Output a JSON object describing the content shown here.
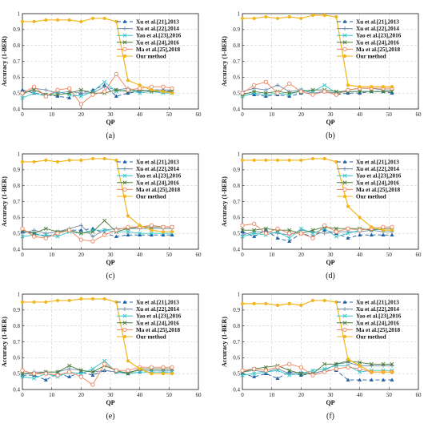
{
  "figure": {
    "xlabel": "QP",
    "ylabel": "Accuracy (1-BER)",
    "xticks": [
      "0",
      "10",
      "20",
      "30",
      "40",
      "50",
      "60"
    ],
    "yticks": [
      "0.4",
      "0.5",
      "0.6",
      "0.7",
      "0.8",
      "0.9",
      "1"
    ],
    "legend_placement": "right",
    "grid": true,
    "colors": {
      "Xu et al.[21],2013": "#1f5fa8",
      "Xu et al.[22],2014": "#6f8ba8",
      "Yao et al.[23],2016": "#33c4c8",
      "Xu et al.[24],2016": "#4a7a36",
      "Ma et al.[25],2018": "#f0825a",
      "Our method": "#f2b51c"
    }
  },
  "chart_data": [
    {
      "type": "line",
      "label": "(a)",
      "xlim": [
        0,
        60
      ],
      "ylim": [
        0.4,
        1.0
      ],
      "x": [
        0,
        4,
        8,
        12,
        16,
        20,
        24,
        28,
        32,
        36,
        40,
        44,
        48,
        51
      ],
      "series": [
        {
          "name": "Xu et al.[21],2013",
          "values": [
            0.52,
            0.5,
            0.49,
            0.48,
            0.47,
            0.5,
            0.52,
            0.55,
            0.48,
            0.5,
            0.51,
            0.52,
            0.52,
            0.51
          ]
        },
        {
          "name": "Xu et al.[22],2014",
          "values": [
            0.49,
            0.53,
            0.52,
            0.5,
            0.51,
            0.5,
            0.5,
            0.54,
            0.52,
            0.53,
            0.51,
            0.52,
            0.52,
            0.52
          ]
        },
        {
          "name": "Yao et al.[23],2016",
          "values": [
            0.47,
            0.5,
            0.48,
            0.51,
            0.49,
            0.48,
            0.51,
            0.57,
            0.51,
            0.52,
            0.5,
            0.51,
            0.5,
            0.5
          ]
        },
        {
          "name": "Xu et al.[24],2016",
          "values": [
            0.5,
            0.52,
            0.49,
            0.49,
            0.5,
            0.52,
            0.5,
            0.5,
            0.52,
            0.51,
            0.52,
            0.51,
            0.51,
            0.51
          ]
        },
        {
          "name": "Ma et al.[25],2018",
          "values": [
            0.5,
            0.54,
            0.48,
            0.52,
            0.53,
            0.43,
            0.49,
            0.51,
            0.62,
            0.52,
            0.53,
            0.54,
            0.54,
            0.53
          ]
        },
        {
          "name": "Our method",
          "values": [
            0.95,
            0.95,
            0.96,
            0.96,
            0.96,
            0.95,
            0.97,
            0.97,
            0.95,
            0.58,
            0.55,
            0.52,
            0.51,
            0.5
          ]
        }
      ]
    },
    {
      "type": "line",
      "label": "(b)",
      "xlim": [
        0,
        60
      ],
      "ylim": [
        0.4,
        1.0
      ],
      "x": [
        0,
        4,
        8,
        12,
        16,
        20,
        24,
        28,
        32,
        36,
        40,
        44,
        48,
        51
      ],
      "series": [
        {
          "name": "Xu et al.[21],2013",
          "values": [
            0.5,
            0.49,
            0.48,
            0.49,
            0.48,
            0.5,
            0.5,
            0.51,
            0.49,
            0.5,
            0.5,
            0.51,
            0.51,
            0.5
          ]
        },
        {
          "name": "Xu et al.[22],2014",
          "values": [
            0.51,
            0.53,
            0.52,
            0.55,
            0.51,
            0.52,
            0.5,
            0.51,
            0.5,
            0.52,
            0.53,
            0.53,
            0.52,
            0.52
          ]
        },
        {
          "name": "Yao et al.[23],2016",
          "values": [
            0.48,
            0.5,
            0.49,
            0.5,
            0.49,
            0.52,
            0.51,
            0.55,
            0.5,
            0.51,
            0.51,
            0.51,
            0.51,
            0.51
          ]
        },
        {
          "name": "Xu et al.[24],2016",
          "values": [
            0.49,
            0.51,
            0.5,
            0.51,
            0.5,
            0.51,
            0.52,
            0.52,
            0.51,
            0.51,
            0.51,
            0.51,
            0.51,
            0.51
          ]
        },
        {
          "name": "Ma et al.[25],2018",
          "values": [
            0.5,
            0.55,
            0.57,
            0.5,
            0.56,
            0.51,
            0.49,
            0.51,
            0.49,
            0.52,
            0.53,
            0.53,
            0.53,
            0.53
          ]
        },
        {
          "name": "Our method",
          "values": [
            0.97,
            0.97,
            0.98,
            0.97,
            0.98,
            0.97,
            0.99,
            0.99,
            0.98,
            0.55,
            0.54,
            0.54,
            0.54,
            0.54
          ]
        }
      ]
    },
    {
      "type": "line",
      "label": "(c)",
      "xlim": [
        0,
        60
      ],
      "ylim": [
        0.4,
        1.0
      ],
      "x": [
        0,
        4,
        8,
        12,
        16,
        20,
        24,
        28,
        32,
        36,
        40,
        44,
        48,
        51
      ],
      "series": [
        {
          "name": "Xu et al.[21],2013",
          "values": [
            0.51,
            0.5,
            0.48,
            0.5,
            0.52,
            0.52,
            0.53,
            0.5,
            0.48,
            0.49,
            0.49,
            0.49,
            0.49,
            0.49
          ]
        },
        {
          "name": "Xu et al.[22],2014",
          "values": [
            0.5,
            0.52,
            0.5,
            0.51,
            0.53,
            0.55,
            0.48,
            0.52,
            0.53,
            0.53,
            0.53,
            0.53,
            0.53,
            0.53
          ]
        },
        {
          "name": "Yao et al.[23],2016",
          "values": [
            0.48,
            0.49,
            0.49,
            0.48,
            0.51,
            0.5,
            0.52,
            0.52,
            0.51,
            0.51,
            0.5,
            0.5,
            0.5,
            0.5
          ]
        },
        {
          "name": "Xu et al.[24],2016",
          "values": [
            0.52,
            0.5,
            0.53,
            0.51,
            0.52,
            0.5,
            0.51,
            0.58,
            0.51,
            0.53,
            0.54,
            0.54,
            0.54,
            0.54
          ]
        },
        {
          "name": "Ma et al.[25],2018",
          "values": [
            0.53,
            0.48,
            0.47,
            0.5,
            0.52,
            0.46,
            0.45,
            0.49,
            0.52,
            0.54,
            0.54,
            0.55,
            0.54,
            0.54
          ]
        },
        {
          "name": "Our method",
          "values": [
            0.95,
            0.95,
            0.96,
            0.95,
            0.96,
            0.96,
            0.97,
            0.97,
            0.96,
            0.61,
            0.55,
            0.52,
            0.51,
            0.51
          ]
        }
      ]
    },
    {
      "type": "line",
      "label": "(d)",
      "xlim": [
        0,
        60
      ],
      "ylim": [
        0.4,
        1.0
      ],
      "x": [
        0,
        4,
        8,
        12,
        16,
        20,
        24,
        28,
        32,
        36,
        40,
        44,
        48,
        51
      ],
      "series": [
        {
          "name": "Xu et al.[21],2013",
          "values": [
            0.51,
            0.48,
            0.52,
            0.47,
            0.45,
            0.5,
            0.48,
            0.52,
            0.5,
            0.47,
            0.49,
            0.49,
            0.49,
            0.49
          ]
        },
        {
          "name": "Xu et al.[22],2014",
          "values": [
            0.49,
            0.51,
            0.51,
            0.5,
            0.49,
            0.52,
            0.51,
            0.5,
            0.51,
            0.51,
            0.51,
            0.52,
            0.51,
            0.51
          ]
        },
        {
          "name": "Yao et al.[23],2016",
          "values": [
            0.48,
            0.5,
            0.49,
            0.51,
            0.47,
            0.53,
            0.5,
            0.53,
            0.48,
            0.5,
            0.52,
            0.53,
            0.52,
            0.52
          ]
        },
        {
          "name": "Xu et al.[24],2016",
          "values": [
            0.52,
            0.52,
            0.53,
            0.52,
            0.52,
            0.5,
            0.52,
            0.54,
            0.53,
            0.53,
            0.53,
            0.52,
            0.53,
            0.53
          ]
        },
        {
          "name": "Ma et al.[25],2018",
          "values": [
            0.55,
            0.56,
            0.5,
            0.53,
            0.5,
            0.5,
            0.47,
            0.55,
            0.51,
            0.53,
            0.52,
            0.53,
            0.54,
            0.54
          ]
        },
        {
          "name": "Our method",
          "values": [
            0.96,
            0.96,
            0.96,
            0.96,
            0.96,
            0.96,
            0.97,
            0.97,
            0.95,
            0.67,
            0.6,
            0.54,
            0.52,
            0.52
          ]
        }
      ]
    },
    {
      "type": "line",
      "label": "(e)",
      "xlim": [
        0,
        60
      ],
      "ylim": [
        0.4,
        1.0
      ],
      "x": [
        0,
        4,
        8,
        12,
        16,
        20,
        24,
        28,
        32,
        36,
        40,
        44,
        48,
        51
      ],
      "series": [
        {
          "name": "Xu et al.[21],2013",
          "values": [
            0.49,
            0.49,
            0.46,
            0.5,
            0.48,
            0.51,
            0.49,
            0.52,
            0.51,
            0.5,
            0.51,
            0.51,
            0.51,
            0.51
          ]
        },
        {
          "name": "Xu et al.[22],2014",
          "values": [
            0.5,
            0.51,
            0.51,
            0.51,
            0.53,
            0.52,
            0.51,
            0.52,
            0.51,
            0.51,
            0.52,
            0.52,
            0.52,
            0.52
          ]
        },
        {
          "name": "Yao et al.[23],2016",
          "values": [
            0.48,
            0.47,
            0.5,
            0.48,
            0.51,
            0.5,
            0.53,
            0.58,
            0.51,
            0.5,
            0.51,
            0.51,
            0.51,
            0.51
          ]
        },
        {
          "name": "Xu et al.[24],2016",
          "values": [
            0.5,
            0.5,
            0.51,
            0.51,
            0.55,
            0.52,
            0.51,
            0.55,
            0.52,
            0.5,
            0.53,
            0.53,
            0.53,
            0.53
          ]
        },
        {
          "name": "Ma et al.[25],2018",
          "values": [
            0.52,
            0.5,
            0.5,
            0.49,
            0.51,
            0.48,
            0.43,
            0.56,
            0.52,
            0.52,
            0.54,
            0.54,
            0.54,
            0.54
          ]
        },
        {
          "name": "Our method",
          "values": [
            0.95,
            0.95,
            0.95,
            0.96,
            0.96,
            0.97,
            0.97,
            0.97,
            0.95,
            0.58,
            0.53,
            0.5,
            0.5,
            0.5
          ]
        }
      ]
    },
    {
      "type": "line",
      "label": "(f)",
      "xlim": [
        0,
        60
      ],
      "ylim": [
        0.4,
        1.0
      ],
      "x": [
        0,
        4,
        8,
        12,
        16,
        20,
        24,
        28,
        32,
        36,
        40,
        44,
        48,
        51
      ],
      "series": [
        {
          "name": "Xu et al.[21],2013",
          "values": [
            0.5,
            0.48,
            0.5,
            0.47,
            0.51,
            0.49,
            0.5,
            0.52,
            0.52,
            0.46,
            0.46,
            0.46,
            0.46,
            0.46
          ]
        },
        {
          "name": "Xu et al.[22],2014",
          "values": [
            0.51,
            0.52,
            0.51,
            0.53,
            0.5,
            0.51,
            0.5,
            0.52,
            0.56,
            0.57,
            0.55,
            0.55,
            0.55,
            0.55
          ]
        },
        {
          "name": "Yao et al.[23],2016",
          "values": [
            0.49,
            0.5,
            0.51,
            0.52,
            0.49,
            0.5,
            0.52,
            0.53,
            0.55,
            0.55,
            0.51,
            0.52,
            0.52,
            0.52
          ]
        },
        {
          "name": "Xu et al.[24],2016",
          "values": [
            0.51,
            0.53,
            0.54,
            0.55,
            0.52,
            0.5,
            0.5,
            0.56,
            0.56,
            0.58,
            0.57,
            0.56,
            0.56,
            0.56
          ]
        },
        {
          "name": "Ma et al.[25],2018",
          "values": [
            0.52,
            0.53,
            0.52,
            0.54,
            0.56,
            0.54,
            0.49,
            0.51,
            0.53,
            0.54,
            0.53,
            0.51,
            0.51,
            0.51
          ]
        },
        {
          "name": "Our method",
          "values": [
            0.94,
            0.94,
            0.94,
            0.93,
            0.94,
            0.93,
            0.96,
            0.96,
            0.95,
            0.59,
            0.55,
            0.51,
            0.51,
            0.51
          ]
        }
      ]
    }
  ]
}
